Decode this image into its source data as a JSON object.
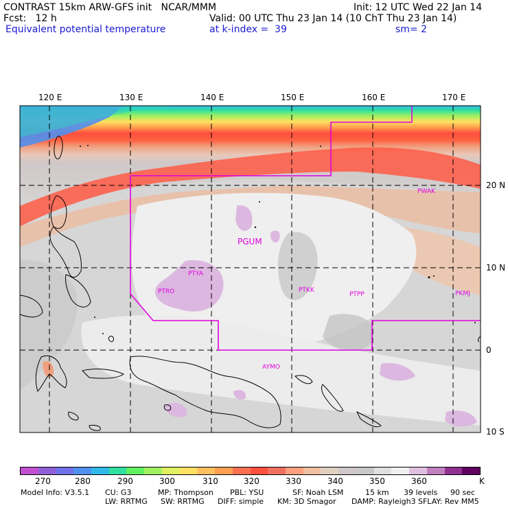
{
  "header": {
    "line1_left": "CONTRAST 15km ARW-GFS init   NCAR/MMM",
    "line1_right": "Init: 12 UTC Wed 22 Jan 14",
    "line2_left": "Fcst:   12 h",
    "line2_right": "Valid: 00 UTC Thu 23 Jan 14 (10 ChT Thu 23 Jan 14)",
    "line3_left": "Equivalent potential temperature",
    "line3_mid": "at k-index =  39",
    "line3_right": "sm= 2"
  },
  "map": {
    "lon_labels": [
      "120 E",
      "130 E",
      "140 E",
      "150 E",
      "160 E",
      "170 E"
    ],
    "lat_labels": [
      "20 N",
      "10 N",
      "0",
      "10 S"
    ],
    "stations": [
      "PWAK",
      "PGUM",
      "PTYA",
      "PTRO",
      "PTKK",
      "PTPP",
      "PKMJ",
      "AYMO"
    ],
    "boundary_color": "#e000e0"
  },
  "colorbar": {
    "colors": [
      "#c050d0",
      "#9060d8",
      "#7070e8",
      "#5090f0",
      "#30b8e8",
      "#30e0a0",
      "#60f060",
      "#a0f060",
      "#e0f060",
      "#ffe060",
      "#ffc060",
      "#ffa050",
      "#ff7050",
      "#ff5040",
      "#f07060",
      "#ffa080",
      "#f0c0a0",
      "#e0d0c0",
      "#d0c8c8",
      "#c8c8c8",
      "#e0e0e0",
      "#f0f0f0",
      "#e0c0e0",
      "#c080c0",
      "#903090",
      "#600060"
    ],
    "tick_labels": [
      "270",
      "280",
      "290",
      "300",
      "310",
      "320",
      "330",
      "340",
      "350",
      "360",
      "K"
    ]
  },
  "footer": {
    "line1": [
      "Model Info: V3.5.1",
      "CU: G3",
      "MP: Thompson",
      "PBL: YSU",
      "SF: Noah LSM",
      "15 km",
      "39 levels",
      "90 sec"
    ],
    "line2": [
      "LW: RRTMG",
      "SW: RRTMG",
      "DIFF: simple",
      "KM: 3D Smagor",
      "DAMP: Rayleigh3",
      "SFLAY: Rev MM5"
    ]
  }
}
